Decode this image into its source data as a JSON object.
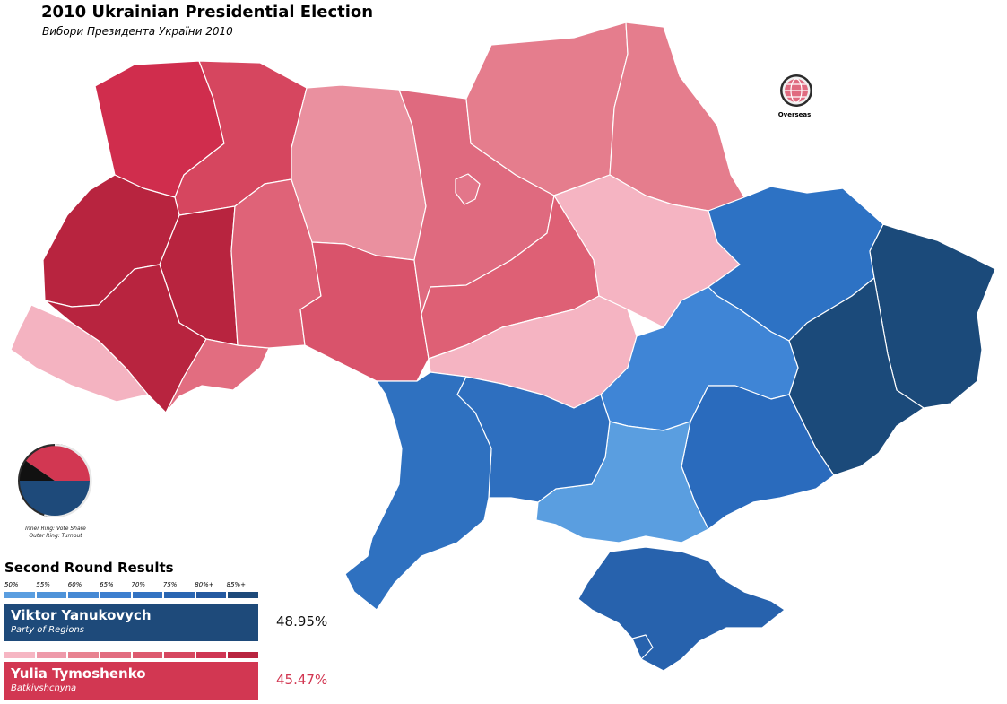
{
  "title": "2010 Ukrainian Presidential Election",
  "subtitle": "Вибори Президента України 2010",
  "overseas_label": "Overseas",
  "ring_caption": [
    "Inner Ring: Vote Share",
    "Outer Ring: Turnout"
  ],
  "results_heading": "Second Round Results",
  "scale_labels": [
    "50%",
    "55%",
    "60%",
    "65%",
    "70%",
    "75%",
    "80%+",
    "85%+"
  ],
  "colors": {
    "blue_scale": [
      "#5a9ee0",
      "#4f93d9",
      "#4689d4",
      "#3d7fcf",
      "#3373c2",
      "#2a66b2",
      "#2459a0",
      "#1e4a7a"
    ],
    "red_scale": [
      "#f6b6c3",
      "#ee9aaa",
      "#e88391",
      "#e26d80",
      "#dd5a6f",
      "#d64760",
      "#cf3654",
      "#b8243f"
    ],
    "yanukovych": "#1e4a7a",
    "tymoshenko": "#d23752"
  },
  "candidates": [
    {
      "name": "Viktor Yanukovych",
      "party": "Party of Regions",
      "share": "48.95%"
    },
    {
      "name": "Yulia Tymoshenko",
      "party": "Batkivshchyna",
      "share": "45.47%"
    }
  ],
  "ring": {
    "tymoshenko": 45.47,
    "yanukovych": 48.95,
    "against_all": 4.36
  }
}
